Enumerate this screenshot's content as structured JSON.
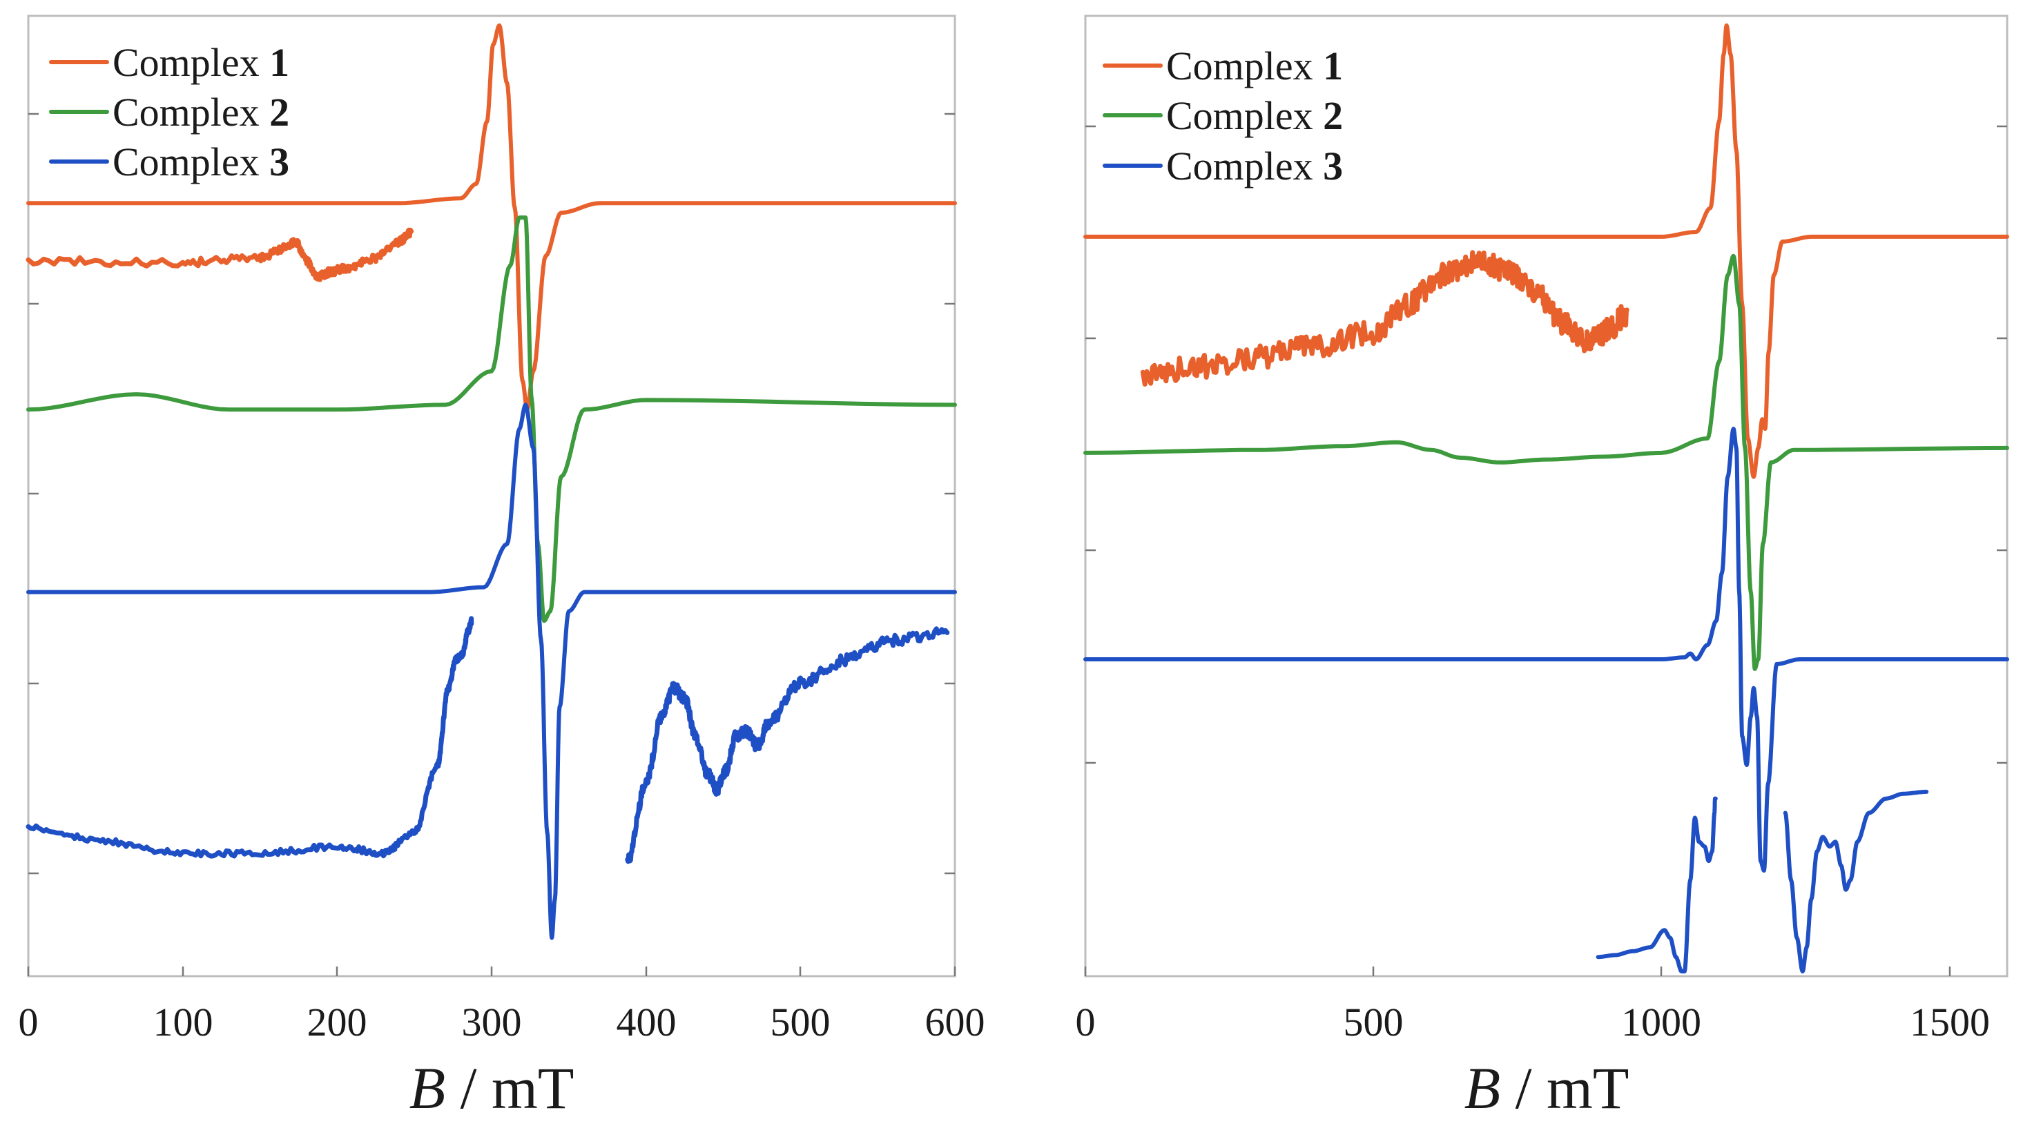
{
  "colors": {
    "complex1": "#e8612c",
    "complex2": "#3d9a3d",
    "complex3": "#1f4fc4"
  },
  "chart_data": [
    {
      "type": "line",
      "title": "",
      "xlabel_symbol": "B",
      "xlabel_unit": " / mT",
      "ylabel": "",
      "xlim": [
        0,
        600
      ],
      "ylim": [
        0,
        1
      ],
      "xticks": [
        "0",
        "100",
        "200",
        "300",
        "400",
        "500",
        "600"
      ],
      "legend": [
        {
          "name": "Complex",
          "number": "1",
          "color": "#e8612c"
        },
        {
          "name": "Complex",
          "number": "2",
          "color": "#3d9a3d"
        },
        {
          "name": "Complex",
          "number": "3",
          "color": "#1f4fc4"
        }
      ],
      "series": [
        {
          "name": "Complex 1",
          "color": "#e8612c",
          "x": [
            0,
            240,
            280,
            290,
            297,
            301,
            305,
            310,
            315,
            320,
            323,
            327,
            335,
            345,
            370,
            600
          ],
          "y": [
            0.805,
            0.805,
            0.81,
            0.825,
            0.89,
            0.97,
            0.99,
            0.93,
            0.8,
            0.62,
            0.59,
            0.63,
            0.75,
            0.795,
            0.805,
            0.805
          ]
        },
        {
          "name": "Complex 1 (expanded)",
          "color": "#e8612c",
          "noise": 0.004,
          "x": [
            0,
            100,
            150,
            165,
            173,
            180,
            187,
            195,
            205,
            225,
            240,
            248
          ],
          "y": [
            0.745,
            0.743,
            0.748,
            0.758,
            0.765,
            0.745,
            0.728,
            0.733,
            0.737,
            0.748,
            0.765,
            0.775
          ]
        },
        {
          "name": "Complex 2",
          "color": "#3d9a3d",
          "x": [
            0,
            70,
            130,
            200,
            270,
            300,
            312,
            318,
            322,
            326,
            330,
            334,
            338,
            345,
            360,
            400,
            600
          ],
          "y": [
            0.59,
            0.606,
            0.59,
            0.59,
            0.595,
            0.63,
            0.74,
            0.79,
            0.79,
            0.6,
            0.45,
            0.37,
            0.38,
            0.52,
            0.59,
            0.6,
            0.595
          ]
        },
        {
          "name": "Complex 3",
          "color": "#1f4fc4",
          "x": [
            0,
            260,
            295,
            310,
            318,
            322,
            327,
            332,
            336,
            339,
            341,
            344,
            350,
            360,
            380,
            600
          ],
          "y": [
            0.4,
            0.4,
            0.405,
            0.45,
            0.57,
            0.595,
            0.55,
            0.35,
            0.15,
            0.04,
            0.08,
            0.28,
            0.38,
            0.4,
            0.4,
            0.4
          ]
        },
        {
          "name": "Complex 3 (expanded, low field)",
          "color": "#1f4fc4",
          "noise": 0.003,
          "x": [
            0,
            50,
            100,
            150,
            200,
            230,
            250,
            265,
            272,
            277,
            281,
            285,
            287
          ],
          "y": [
            0.155,
            0.14,
            0.128,
            0.128,
            0.135,
            0.128,
            0.15,
            0.22,
            0.3,
            0.33,
            0.335,
            0.36,
            0.37
          ]
        },
        {
          "name": "Complex 3 (expanded, high field)",
          "color": "#1f4fc4",
          "noise": 0.006,
          "x": [
            388,
            400,
            410,
            418,
            425,
            432,
            440,
            446,
            452,
            458,
            465,
            472,
            480,
            500,
            530,
            560,
            595
          ],
          "y": [
            0.12,
            0.2,
            0.27,
            0.3,
            0.29,
            0.25,
            0.21,
            0.195,
            0.215,
            0.25,
            0.255,
            0.24,
            0.265,
            0.305,
            0.33,
            0.35,
            0.36
          ]
        }
      ]
    },
    {
      "type": "line",
      "title": "",
      "xlabel_symbol": "B",
      "xlabel_unit": " / mT",
      "ylabel": "",
      "xlim": [
        0,
        1600
      ],
      "ylim": [
        0,
        1
      ],
      "xticks": [
        "0",
        "500",
        "1000",
        "1500"
      ],
      "legend": [
        {
          "name": "Complex",
          "number": "1",
          "color": "#e8612c"
        },
        {
          "name": "Complex",
          "number": "2",
          "color": "#3d9a3d"
        },
        {
          "name": "Complex",
          "number": "3",
          "color": "#1f4fc4"
        }
      ],
      "series": [
        {
          "name": "Complex 1",
          "color": "#e8612c",
          "x": [
            0,
            1000,
            1060,
            1085,
            1100,
            1108,
            1113,
            1120,
            1130,
            1140,
            1150,
            1160,
            1168,
            1175,
            1180,
            1186,
            1195,
            1210,
            1260,
            1600
          ],
          "y": [
            0.77,
            0.77,
            0.775,
            0.8,
            0.89,
            0.96,
            0.99,
            0.96,
            0.86,
            0.7,
            0.56,
            0.52,
            0.55,
            0.58,
            0.57,
            0.65,
            0.73,
            0.765,
            0.77,
            0.77
          ]
        },
        {
          "name": "Complex 1 (expanded)",
          "color": "#e8612c",
          "noise": 0.012,
          "x": [
            100,
            200,
            300,
            400,
            500,
            560,
            620,
            680,
            730,
            780,
            830,
            870,
            890,
            910,
            940
          ],
          "y": [
            0.625,
            0.635,
            0.645,
            0.657,
            0.67,
            0.7,
            0.73,
            0.745,
            0.735,
            0.715,
            0.68,
            0.66,
            0.665,
            0.675,
            0.69
          ]
        },
        {
          "name": "Complex 2",
          "color": "#3d9a3d",
          "x": [
            0,
            300,
            450,
            540,
            600,
            650,
            720,
            800,
            900,
            1000,
            1080,
            1100,
            1115,
            1125,
            1135,
            1145,
            1155,
            1162,
            1168,
            1176,
            1190,
            1230,
            1600
          ],
          "y": [
            0.545,
            0.548,
            0.552,
            0.556,
            0.548,
            0.54,
            0.535,
            0.538,
            0.541,
            0.545,
            0.56,
            0.64,
            0.73,
            0.75,
            0.7,
            0.55,
            0.4,
            0.32,
            0.33,
            0.45,
            0.535,
            0.548,
            0.55
          ]
        },
        {
          "name": "Complex 3",
          "color": "#1f4fc4",
          "x": [
            0,
            1000,
            1040,
            1050,
            1060,
            1080,
            1095,
            1105,
            1115,
            1125,
            1130,
            1135,
            1140,
            1148,
            1155,
            1160,
            1166,
            1172,
            1178,
            1185,
            1200,
            1240,
            1600
          ],
          "y": [
            0.33,
            0.33,
            0.332,
            0.336,
            0.33,
            0.345,
            0.37,
            0.42,
            0.52,
            0.57,
            0.55,
            0.4,
            0.25,
            0.22,
            0.27,
            0.3,
            0.27,
            0.12,
            0.11,
            0.2,
            0.325,
            0.33,
            0.33
          ]
        },
        {
          "name": "Complex 3 (expanded)",
          "color": "#1f4fc4",
          "x": [
            890,
            920,
            950,
            980,
            1005,
            1015,
            1025,
            1035,
            1040,
            1050,
            1058,
            1065,
            1075,
            1082,
            1088,
            1092,
            1093,
            1094
          ],
          "y": [
            0.02,
            0.022,
            0.026,
            0.03,
            0.048,
            0.04,
            0.02,
            0.005,
            0.005,
            0.1,
            0.165,
            0.14,
            0.135,
            0.12,
            0.13,
            0.17,
            0.185,
            0.185
          ]
        },
        {
          "name": "Complex 3 (expanded, right)",
          "color": "#1f4fc4",
          "x": [
            1215,
            1225,
            1235,
            1245,
            1252,
            1260,
            1270,
            1280,
            1292,
            1302,
            1312,
            1320,
            1328,
            1340,
            1360,
            1390,
            1420,
            1460
          ],
          "y": [
            0.17,
            0.1,
            0.04,
            0.005,
            0.03,
            0.08,
            0.13,
            0.145,
            0.135,
            0.14,
            0.115,
            0.09,
            0.1,
            0.14,
            0.17,
            0.185,
            0.19,
            0.192
          ]
        }
      ]
    }
  ]
}
